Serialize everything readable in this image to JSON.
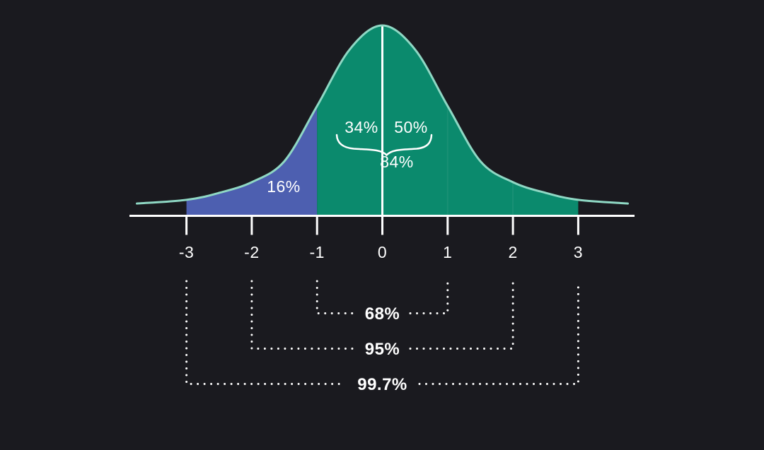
{
  "chart_data": {
    "type": "area",
    "title": "",
    "xlabel": "",
    "ylabel": "",
    "description": "standard-normal-distribution-empirical-rule",
    "x_axis": {
      "min": -3,
      "max": 3,
      "ticks": [
        "-3",
        "-2",
        "-1",
        "0",
        "1",
        "2",
        "3"
      ],
      "grid": false
    },
    "curve": {
      "distribution": "standard-normal",
      "points": [
        {
          "x": -3.76,
          "y": 0.063
        },
        {
          "x": -3.0,
          "y": 0.082
        },
        {
          "x": -2.5,
          "y": 0.119
        },
        {
          "x": -2.0,
          "y": 0.175
        },
        {
          "x": -1.5,
          "y": 0.286
        },
        {
          "x": -1.0,
          "y": 0.576
        },
        {
          "x": -0.5,
          "y": 0.874
        },
        {
          "x": 0.0,
          "y": 1.0
        },
        {
          "x": 0.5,
          "y": 0.874
        },
        {
          "x": 1.0,
          "y": 0.576
        },
        {
          "x": 1.5,
          "y": 0.286
        },
        {
          "x": 2.0,
          "y": 0.175
        },
        {
          "x": 2.5,
          "y": 0.119
        },
        {
          "x": 3.0,
          "y": 0.082
        },
        {
          "x": 3.76,
          "y": 0.063
        }
      ]
    },
    "regions": [
      {
        "from": -3,
        "to": -1,
        "color": "#4d5fb0",
        "label": "16%"
      },
      {
        "from": -1,
        "to": 3,
        "color": "#0b8a6d",
        "label": ""
      }
    ],
    "segment_boundaries": [
      1,
      2
    ],
    "annotations": {
      "left_tail": "16%",
      "minus1_to_mean": "34%",
      "right_of_mean": "50%",
      "brace_total": "84%"
    },
    "intervals": [
      {
        "from": -1,
        "to": 1,
        "label": "68%"
      },
      {
        "from": -2,
        "to": 2,
        "label": "95%"
      },
      {
        "from": -3,
        "to": 3,
        "label": "99.7%"
      }
    ],
    "colors": {
      "background": "#1a1a1f",
      "fill_main": "#0b8a6d",
      "fill_tail": "#4d5fb0",
      "curve_stroke": "#8fd8c4",
      "axis": "#ffffff",
      "text": "#ffffff"
    },
    "legend": null
  }
}
